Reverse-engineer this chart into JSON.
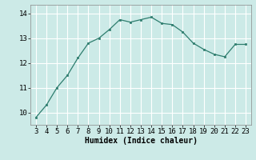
{
  "x": [
    3,
    4,
    5,
    6,
    7,
    8,
    9,
    10,
    11,
    12,
    13,
    14,
    15,
    16,
    17,
    18,
    19,
    20,
    21,
    22,
    23
  ],
  "y": [
    9.8,
    10.3,
    11.0,
    11.5,
    12.2,
    12.8,
    13.0,
    13.35,
    13.75,
    13.65,
    13.75,
    13.85,
    13.6,
    13.55,
    13.25,
    12.8,
    12.55,
    12.35,
    12.25,
    12.75,
    12.75
  ],
  "line_color": "#2e7d6e",
  "marker_color": "#2e7d6e",
  "bg_color": "#cceae7",
  "grid_color": "#ffffff",
  "xlabel": "Humidex (Indice chaleur)",
  "xlim": [
    2.5,
    23.5
  ],
  "ylim": [
    9.5,
    14.35
  ],
  "yticks": [
    10,
    11,
    12,
    13,
    14
  ],
  "xticks": [
    3,
    4,
    5,
    6,
    7,
    8,
    9,
    10,
    11,
    12,
    13,
    14,
    15,
    16,
    17,
    18,
    19,
    20,
    21,
    22,
    23
  ],
  "xlabel_fontsize": 7,
  "tick_fontsize": 6.5
}
